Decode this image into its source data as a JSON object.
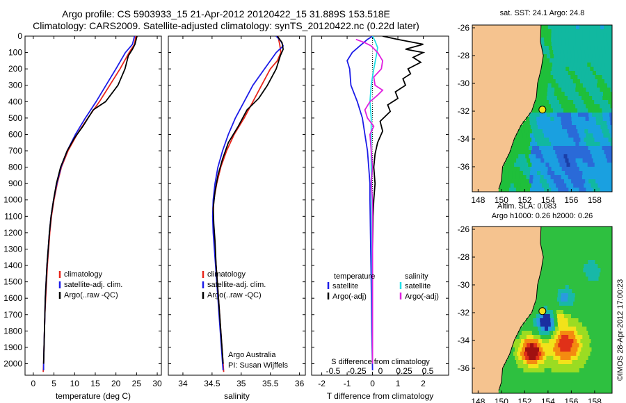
{
  "header": {
    "line1": "Argo profile: CS 5903933_15 21-Apr-2012 20120422_15 31.889S 153.518E",
    "line2": "Climatology: CARS2009. Satellite-adjusted climatology: synTS_20120422.nc (0.22d later)"
  },
  "colors": {
    "climatology": "#e8261c",
    "satellite": "#1c1ce8",
    "argo": "#000000",
    "s_satellite": "#22e0e8",
    "s_argo": "#e020e0",
    "land": "#f5c38f"
  },
  "chart_data": [
    {
      "type": "line",
      "name": "temperature-profile",
      "xlabel": "temperature (deg C)",
      "ylabel": "",
      "xlim": [
        -2,
        31
      ],
      "ylim": [
        2070,
        0
      ],
      "xticks": [
        0,
        5,
        10,
        15,
        20,
        25,
        30
      ],
      "yticks": [
        0,
        100,
        200,
        300,
        400,
        500,
        600,
        700,
        800,
        900,
        1000,
        1100,
        1200,
        1300,
        1400,
        1500,
        1600,
        1700,
        1800,
        1900,
        2000
      ],
      "legend": [
        "climatology",
        "satellite-adj. clim.",
        "Argo(..raw -QC)"
      ],
      "series": [
        {
          "name": "climatology",
          "color": "#e8261c",
          "points": [
            [
              24.8,
              0
            ],
            [
              24.5,
              50
            ],
            [
              23.2,
              100
            ],
            [
              21.0,
              200
            ],
            [
              18.5,
              300
            ],
            [
              16.0,
              400
            ],
            [
              13.2,
              500
            ],
            [
              10.6,
              600
            ],
            [
              8.4,
              700
            ],
            [
              6.8,
              800
            ],
            [
              5.8,
              900
            ],
            [
              5.0,
              1000
            ],
            [
              4.4,
              1100
            ],
            [
              4.0,
              1200
            ],
            [
              3.7,
              1300
            ],
            [
              3.4,
              1400
            ],
            [
              3.2,
              1500
            ],
            [
              3.0,
              1600
            ],
            [
              2.8,
              1700
            ],
            [
              2.7,
              1800
            ],
            [
              2.6,
              1900
            ],
            [
              2.5,
              2000
            ],
            [
              2.4,
              2050
            ]
          ]
        },
        {
          "name": "satellite-adj. clim.",
          "color": "#1c1ce8",
          "points": [
            [
              24.5,
              0
            ],
            [
              24.0,
              50
            ],
            [
              22.3,
              100
            ],
            [
              20.0,
              200
            ],
            [
              17.6,
              300
            ],
            [
              15.2,
              400
            ],
            [
              12.6,
              500
            ],
            [
              10.2,
              600
            ],
            [
              8.2,
              700
            ],
            [
              6.7,
              800
            ],
            [
              5.7,
              900
            ],
            [
              4.9,
              1000
            ],
            [
              4.3,
              1100
            ],
            [
              3.9,
              1200
            ],
            [
              3.6,
              1300
            ],
            [
              3.3,
              1400
            ],
            [
              3.1,
              1500
            ],
            [
              2.9,
              1600
            ],
            [
              2.8,
              1700
            ],
            [
              2.7,
              1800
            ],
            [
              2.6,
              1900
            ],
            [
              2.5,
              2000
            ],
            [
              2.5,
              2040
            ]
          ]
        },
        {
          "name": "Argo(..raw -QC)",
          "color": "#000000",
          "points": [
            [
              25.1,
              0
            ],
            [
              24.6,
              50
            ],
            [
              24.0,
              80
            ],
            [
              23.0,
              120
            ],
            [
              22.2,
              200
            ],
            [
              20.5,
              300
            ],
            [
              17.5,
              400
            ],
            [
              14.5,
              450
            ],
            [
              12.0,
              550
            ],
            [
              10.0,
              620
            ],
            [
              8.2,
              700
            ],
            [
              6.6,
              800
            ],
            [
              5.6,
              900
            ],
            [
              4.9,
              1000
            ],
            [
              4.3,
              1100
            ],
            [
              3.9,
              1200
            ],
            [
              3.6,
              1300
            ],
            [
              3.3,
              1400
            ],
            [
              3.1,
              1500
            ],
            [
              2.9,
              1600
            ],
            [
              2.8,
              1700
            ],
            [
              2.7,
              1800
            ],
            [
              2.6,
              1900
            ],
            [
              2.5,
              2000
            ]
          ]
        }
      ]
    },
    {
      "type": "line",
      "name": "salinity-profile",
      "xlabel": "salinity",
      "xlim": [
        33.75,
        36.1
      ],
      "ylim": [
        2070,
        0
      ],
      "xticks": [
        34,
        34.5,
        35,
        35.5,
        36
      ],
      "legend": [
        "climatology",
        "satellite-adj. clim.",
        "Argo(..raw -QC)"
      ],
      "annotation": [
        "Argo Australia",
        "PI: Susan Wijffels"
      ],
      "series": [
        {
          "name": "climatology",
          "color": "#e8261c",
          "points": [
            [
              35.63,
              0
            ],
            [
              35.66,
              50
            ],
            [
              35.68,
              100
            ],
            [
              35.62,
              150
            ],
            [
              35.5,
              200
            ],
            [
              35.35,
              300
            ],
            [
              35.2,
              400
            ],
            [
              35.05,
              500
            ],
            [
              34.88,
              600
            ],
            [
              34.75,
              700
            ],
            [
              34.65,
              800
            ],
            [
              34.58,
              900
            ],
            [
              34.53,
              1000
            ],
            [
              34.52,
              1100
            ],
            [
              34.53,
              1200
            ],
            [
              34.55,
              1300
            ],
            [
              34.57,
              1400
            ],
            [
              34.59,
              1500
            ],
            [
              34.61,
              1600
            ],
            [
              34.63,
              1700
            ],
            [
              34.65,
              1800
            ],
            [
              34.67,
              1900
            ],
            [
              34.69,
              2000
            ],
            [
              34.7,
              2050
            ]
          ]
        },
        {
          "name": "satellite-adj. clim.",
          "color": "#1c1ce8",
          "points": [
            [
              35.6,
              0
            ],
            [
              35.68,
              30
            ],
            [
              35.72,
              60
            ],
            [
              35.6,
              100
            ],
            [
              35.4,
              200
            ],
            [
              35.2,
              300
            ],
            [
              35.05,
              400
            ],
            [
              34.9,
              500
            ],
            [
              34.78,
              600
            ],
            [
              34.68,
              700
            ],
            [
              34.6,
              800
            ],
            [
              34.55,
              900
            ],
            [
              34.52,
              1000
            ],
            [
              34.51,
              1100
            ],
            [
              34.52,
              1200
            ],
            [
              34.54,
              1300
            ],
            [
              34.56,
              1400
            ],
            [
              34.58,
              1500
            ],
            [
              34.6,
              1600
            ],
            [
              34.62,
              1700
            ],
            [
              34.64,
              1800
            ],
            [
              34.66,
              1900
            ],
            [
              34.68,
              2000
            ],
            [
              34.69,
              2040
            ]
          ]
        },
        {
          "name": "Argo(..raw -QC)",
          "color": "#000000",
          "points": [
            [
              35.62,
              0
            ],
            [
              35.7,
              40
            ],
            [
              35.72,
              80
            ],
            [
              35.67,
              120
            ],
            [
              35.6,
              200
            ],
            [
              35.45,
              300
            ],
            [
              35.3,
              380
            ],
            [
              35.1,
              450
            ],
            [
              34.95,
              550
            ],
            [
              34.78,
              650
            ],
            [
              34.68,
              750
            ],
            [
              34.6,
              850
            ],
            [
              34.55,
              950
            ],
            [
              34.52,
              1050
            ],
            [
              34.53,
              1150
            ],
            [
              34.55,
              1250
            ],
            [
              34.57,
              1400
            ],
            [
              34.6,
              1550
            ],
            [
              34.63,
              1700
            ],
            [
              34.66,
              1850
            ],
            [
              34.69,
              2000
            ]
          ]
        }
      ]
    },
    {
      "type": "line",
      "name": "difference-profile",
      "xlabel": "T difference from climatology",
      "x2label": "S difference from climatology",
      "xlim": [
        -2.4,
        3.0
      ],
      "ylim": [
        2070,
        0
      ],
      "xticks": [
        -2,
        -1,
        0,
        1,
        2
      ],
      "x2ticks": [
        -0.5,
        -0.25,
        0,
        0.25,
        0.5
      ],
      "legend": {
        "temperature": "temperature",
        "salinity": "salinity",
        "t_satellite": "satellite",
        "t_argo": "Argo(-adj)",
        "s_satellite": "satellite",
        "s_argo": "Argo(-adj)"
      },
      "series": [
        {
          "name": "T satellite",
          "color": "#1c1ce8",
          "points": [
            [
              0,
              0
            ],
            [
              -0.2,
              20
            ],
            [
              -0.5,
              60
            ],
            [
              -0.8,
              100
            ],
            [
              -1.0,
              150
            ],
            [
              -0.9,
              200
            ],
            [
              -0.85,
              300
            ],
            [
              -0.6,
              400
            ],
            [
              -0.4,
              500
            ],
            [
              -0.3,
              600
            ],
            [
              -0.2,
              700
            ],
            [
              -0.15,
              800
            ],
            [
              -0.1,
              900
            ],
            [
              -0.1,
              1000
            ],
            [
              -0.08,
              1200
            ],
            [
              -0.05,
              1500
            ],
            [
              -0.03,
              1800
            ],
            [
              0,
              2040
            ]
          ]
        },
        {
          "name": "T Argo(-adj)",
          "color": "#000000",
          "points": [
            [
              0.4,
              0
            ],
            [
              1.0,
              20
            ],
            [
              2.0,
              50
            ],
            [
              1.3,
              80
            ],
            [
              2.0,
              100
            ],
            [
              1.6,
              130
            ],
            [
              1.9,
              160
            ],
            [
              1.4,
              200
            ],
            [
              1.5,
              230
            ],
            [
              1.2,
              260
            ],
            [
              1.3,
              300
            ],
            [
              0.9,
              340
            ],
            [
              1.0,
              380
            ],
            [
              0.6,
              420
            ],
            [
              0.7,
              460
            ],
            [
              0.3,
              520
            ],
            [
              0.4,
              580
            ],
            [
              0.2,
              650
            ],
            [
              0.1,
              720
            ],
            [
              0.05,
              800
            ],
            [
              0.1,
              900
            ],
            [
              0.05,
              1000
            ],
            [
              0.02,
              1100
            ],
            [
              0,
              1300
            ],
            [
              0,
              1500
            ],
            [
              0,
              1800
            ],
            [
              0,
              2000
            ]
          ]
        },
        {
          "name": "S satellite",
          "color": "#22e0e8",
          "points": [
            [
              0,
              0
            ],
            [
              0.1,
              30
            ],
            [
              0.2,
              70
            ],
            [
              0.15,
              120
            ],
            [
              0.05,
              200
            ],
            [
              -0.05,
              300
            ],
            [
              -0.1,
              400
            ],
            [
              -0.05,
              500
            ],
            [
              -0.05,
              600
            ],
            [
              -0.05,
              800
            ],
            [
              -0.03,
              1000
            ],
            [
              -0.02,
              1300
            ],
            [
              -0.01,
              1600
            ],
            [
              0,
              2000
            ]
          ]
        },
        {
          "name": "S Argo(-adj)",
          "color": "#e020e0",
          "points": [
            [
              -0.65,
              20
            ],
            [
              -0.3,
              40
            ],
            [
              -0.05,
              60
            ],
            [
              0.2,
              100
            ],
            [
              0.4,
              150
            ],
            [
              0.35,
              200
            ],
            [
              0.05,
              250
            ],
            [
              0.1,
              300
            ],
            [
              0.4,
              330
            ],
            [
              0.2,
              360
            ],
            [
              -0.1,
              400
            ],
            [
              -0.3,
              450
            ],
            [
              -0.2,
              500
            ],
            [
              0.05,
              550
            ],
            [
              -0.1,
              600
            ],
            [
              -0.05,
              700
            ],
            [
              0,
              800
            ],
            [
              -0.05,
              900
            ],
            [
              0,
              1000
            ],
            [
              0,
              1200
            ],
            [
              0,
              1500
            ],
            [
              0,
              1800
            ],
            [
              0,
              2000
            ]
          ]
        }
      ]
    },
    {
      "type": "heatmap",
      "name": "sst-map",
      "title": "sat. SST: 24.1  Argo: 24.8",
      "xlim": [
        147.5,
        159.5
      ],
      "ylim": [
        -37.8,
        -25.8
      ],
      "xticks": [
        148,
        150,
        152,
        154,
        156,
        158
      ],
      "yticks": [
        -26,
        -28,
        -30,
        -32,
        -34,
        -36
      ],
      "argo_position": [
        153.518,
        -31.889
      ]
    },
    {
      "type": "heatmap",
      "name": "sla-map",
      "title": [
        "Altim. SLA: 0.083",
        "Argo h1000: 0.26 h2000: 0.26"
      ],
      "xlim": [
        147.5,
        159.5
      ],
      "ylim": [
        -37.8,
        -25.8
      ],
      "xticks": [
        148,
        150,
        152,
        154,
        156,
        158
      ],
      "yticks": [
        -26,
        -28,
        -30,
        -32,
        -34,
        -36
      ],
      "argo_position": [
        153.518,
        -31.889
      ]
    }
  ],
  "stamp": "©IMOS 28-Apr-2012 17:00:23"
}
